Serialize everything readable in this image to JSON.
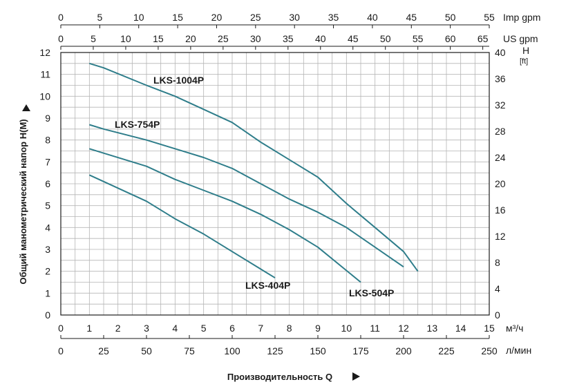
{
  "chart_data": {
    "type": "line",
    "series": [
      {
        "name": "LKS-1004P",
        "x": [
          1,
          1.5,
          3,
          4,
          5,
          6,
          7,
          8,
          9,
          10,
          11,
          12,
          12.5
        ],
        "y": [
          11.5,
          11.3,
          10.5,
          10.0,
          9.4,
          8.8,
          7.9,
          7.1,
          6.3,
          5.1,
          4.0,
          2.9,
          2.0
        ]
      },
      {
        "name": "LKS-754P",
        "x": [
          1,
          1.5,
          3,
          4,
          5,
          6,
          7,
          8,
          9,
          10,
          11,
          12
        ],
        "y": [
          8.7,
          8.5,
          8.0,
          7.6,
          7.2,
          6.7,
          6.0,
          5.3,
          4.7,
          4.0,
          3.1,
          2.2
        ]
      },
      {
        "name": "",
        "x": [
          1,
          1.5,
          3,
          4,
          5,
          6,
          7,
          8,
          9,
          10.5
        ],
        "y": [
          7.6,
          7.4,
          6.8,
          6.2,
          5.7,
          5.2,
          4.6,
          3.9,
          3.1,
          1.5
        ]
      },
      {
        "name": "LKS-404P",
        "x": [
          1,
          1.5,
          3,
          4,
          5,
          6,
          7,
          7.5
        ],
        "y": [
          6.4,
          6.1,
          5.2,
          4.4,
          3.7,
          2.9,
          2.1,
          1.7
        ]
      }
    ],
    "series_labels": [
      "LKS-1004P",
      "LKS-754P",
      "LKS-404P",
      "LKS-504P"
    ],
    "x_ticks_m3h": [
      "0",
      "1",
      "2",
      "3",
      "4",
      "5",
      "6",
      "7",
      "8",
      "9",
      "10",
      "11",
      "12",
      "13",
      "14",
      "15"
    ],
    "x_ticks_lmin": [
      "0",
      "25",
      "50",
      "75",
      "100",
      "125",
      "150",
      "175",
      "200",
      "225",
      "250"
    ],
    "x_ticks_usgpm": [
      "0",
      "5",
      "10",
      "15",
      "20",
      "25",
      "30",
      "35",
      "40",
      "45",
      "50",
      "55",
      "60",
      "65"
    ],
    "x_ticks_impgpm": [
      "0",
      "5",
      "10",
      "15",
      "20",
      "25",
      "30",
      "35",
      "40",
      "45",
      "50",
      "55"
    ],
    "y_ticks_m": [
      "0",
      "1",
      "2",
      "3",
      "4",
      "5",
      "6",
      "7",
      "8",
      "9",
      "10",
      "11",
      "12"
    ],
    "y_ticks_ft": [
      "0",
      "4",
      "8",
      "12",
      "16",
      "20",
      "24",
      "28",
      "32",
      "36",
      "40"
    ],
    "unit_m3h": "м³/ч",
    "unit_lmin": "л/мин",
    "unit_usgpm": "US gpm",
    "unit_impgpm": "Imp gpm",
    "unit_h": "H",
    "unit_ft": "[ft]",
    "ylabel": "Общий манометрический напор H(M)",
    "xlabel": "Производительность Q",
    "xlim": [
      0,
      15
    ],
    "ylim": [
      0,
      12
    ],
    "grid": true,
    "line_color": "#2e7d8a"
  }
}
